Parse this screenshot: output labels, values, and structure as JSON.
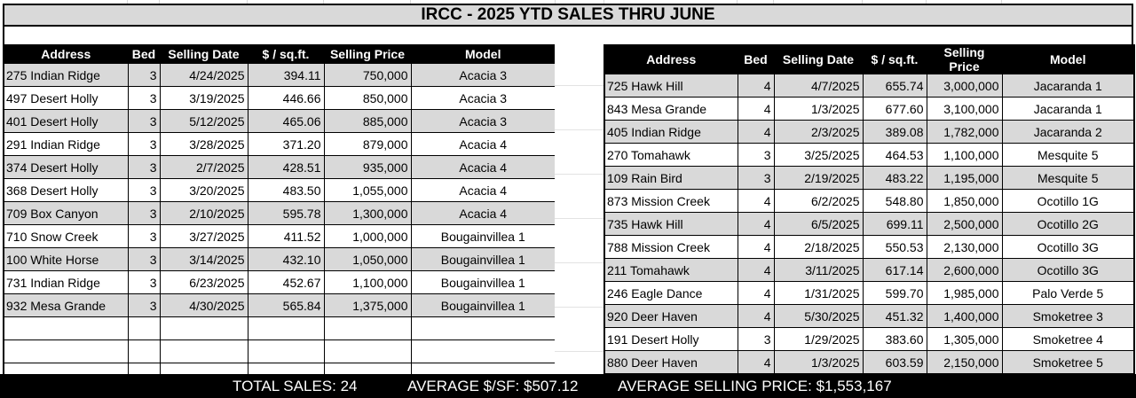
{
  "title": "IRCC - 2025 YTD SALES THRU JUNE",
  "columns": [
    "Address",
    "Bed",
    "Selling Date",
    "$ / sq.ft.",
    "Selling Price",
    "Model"
  ],
  "colors": {
    "header_bg": "#000000",
    "shade": "#d9d9d9",
    "title_bg": "#d9d9d9"
  },
  "left_rows": [
    {
      "address": "275 Indian Ridge",
      "bed": "3",
      "date": "4/24/2025",
      "psf": "394.11",
      "price": "750,000",
      "model": "Acacia 3"
    },
    {
      "address": "497 Desert Holly",
      "bed": "3",
      "date": "3/19/2025",
      "psf": "446.66",
      "price": "850,000",
      "model": "Acacia 3"
    },
    {
      "address": "401 Desert Holly",
      "bed": "3",
      "date": "5/12/2025",
      "psf": "465.06",
      "price": "885,000",
      "model": "Acacia 3"
    },
    {
      "address": "291 Indian Ridge",
      "bed": "3",
      "date": "3/28/2025",
      "psf": "371.20",
      "price": "879,000",
      "model": "Acacia 4"
    },
    {
      "address": "374 Desert Holly",
      "bed": "3",
      "date": "2/7/2025",
      "psf": "428.51",
      "price": "935,000",
      "model": "Acacia 4"
    },
    {
      "address": "368 Desert Holly",
      "bed": "3",
      "date": "3/20/2025",
      "psf": "483.50",
      "price": "1,055,000",
      "model": "Acacia 4"
    },
    {
      "address": "709 Box Canyon",
      "bed": "3",
      "date": "2/10/2025",
      "psf": "595.78",
      "price": "1,300,000",
      "model": "Acacia 4"
    },
    {
      "address": "710 Snow Creek",
      "bed": "3",
      "date": "3/27/2025",
      "psf": "411.52",
      "price": "1,000,000",
      "model": "Bougainvillea 1"
    },
    {
      "address": "100 White Horse",
      "bed": "3",
      "date": "3/14/2025",
      "psf": "432.10",
      "price": "1,050,000",
      "model": "Bougainvillea 1"
    },
    {
      "address": "731 Indian Ridge",
      "bed": "3",
      "date": "6/23/2025",
      "psf": "452.67",
      "price": "1,100,000",
      "model": "Bougainvillea 1"
    },
    {
      "address": "932 Mesa Grande",
      "bed": "3",
      "date": "4/30/2025",
      "psf": "565.84",
      "price": "1,375,000",
      "model": "Bougainvillea 1"
    }
  ],
  "right_rows": [
    {
      "address": "725 Hawk Hill",
      "bed": "4",
      "date": "4/7/2025",
      "psf": "655.74",
      "price": "3,000,000",
      "model": "Jacaranda 1"
    },
    {
      "address": "843 Mesa Grande",
      "bed": "4",
      "date": "1/3/2025",
      "psf": "677.60",
      "price": "3,100,000",
      "model": "Jacaranda 1"
    },
    {
      "address": "405 Indian Ridge",
      "bed": "4",
      "date": "2/3/2025",
      "psf": "389.08",
      "price": "1,782,000",
      "model": "Jacaranda 2"
    },
    {
      "address": "270 Tomahawk",
      "bed": "3",
      "date": "3/25/2025",
      "psf": "464.53",
      "price": "1,100,000",
      "model": "Mesquite 5"
    },
    {
      "address": "109 Rain Bird",
      "bed": "3",
      "date": "2/19/2025",
      "psf": "483.22",
      "price": "1,195,000",
      "model": "Mesquite 5"
    },
    {
      "address": "873 Mission Creek",
      "bed": "4",
      "date": "6/2/2025",
      "psf": "548.80",
      "price": "1,850,000",
      "model": "Ocotillo 1G"
    },
    {
      "address": "735 Hawk Hill",
      "bed": "4",
      "date": "6/5/2025",
      "psf": "699.11",
      "price": "2,500,000",
      "model": "Ocotillo 2G"
    },
    {
      "address": "788 Mission Creek",
      "bed": "4",
      "date": "2/18/2025",
      "psf": "550.53",
      "price": "2,130,000",
      "model": "Ocotillo 3G"
    },
    {
      "address": "211 Tomahawk",
      "bed": "4",
      "date": "3/11/2025",
      "psf": "617.14",
      "price": "2,600,000",
      "model": "Ocotillo 3G"
    },
    {
      "address": "246 Eagle Dance",
      "bed": "4",
      "date": "1/31/2025",
      "psf": "599.70",
      "price": "1,985,000",
      "model": "Palo Verde 5"
    },
    {
      "address": "920 Deer Haven",
      "bed": "4",
      "date": "5/30/2025",
      "psf": "451.32",
      "price": "1,400,000",
      "model": "Smoketree 3"
    },
    {
      "address": "191 Desert Holly",
      "bed": "3",
      "date": "1/29/2025",
      "psf": "383.60",
      "price": "1,305,000",
      "model": "Smoketree 4"
    },
    {
      "address": "880 Deer Haven",
      "bed": "4",
      "date": "1/3/2025",
      "psf": "603.59",
      "price": "2,150,000",
      "model": "Smoketree 5"
    }
  ],
  "footer": {
    "total_sales": "TOTAL SALES: 24",
    "average_psf": "AVERAGE $/SF: $507.12",
    "average_price": "AVERAGE SELLING PRICE: $1,553,167"
  }
}
